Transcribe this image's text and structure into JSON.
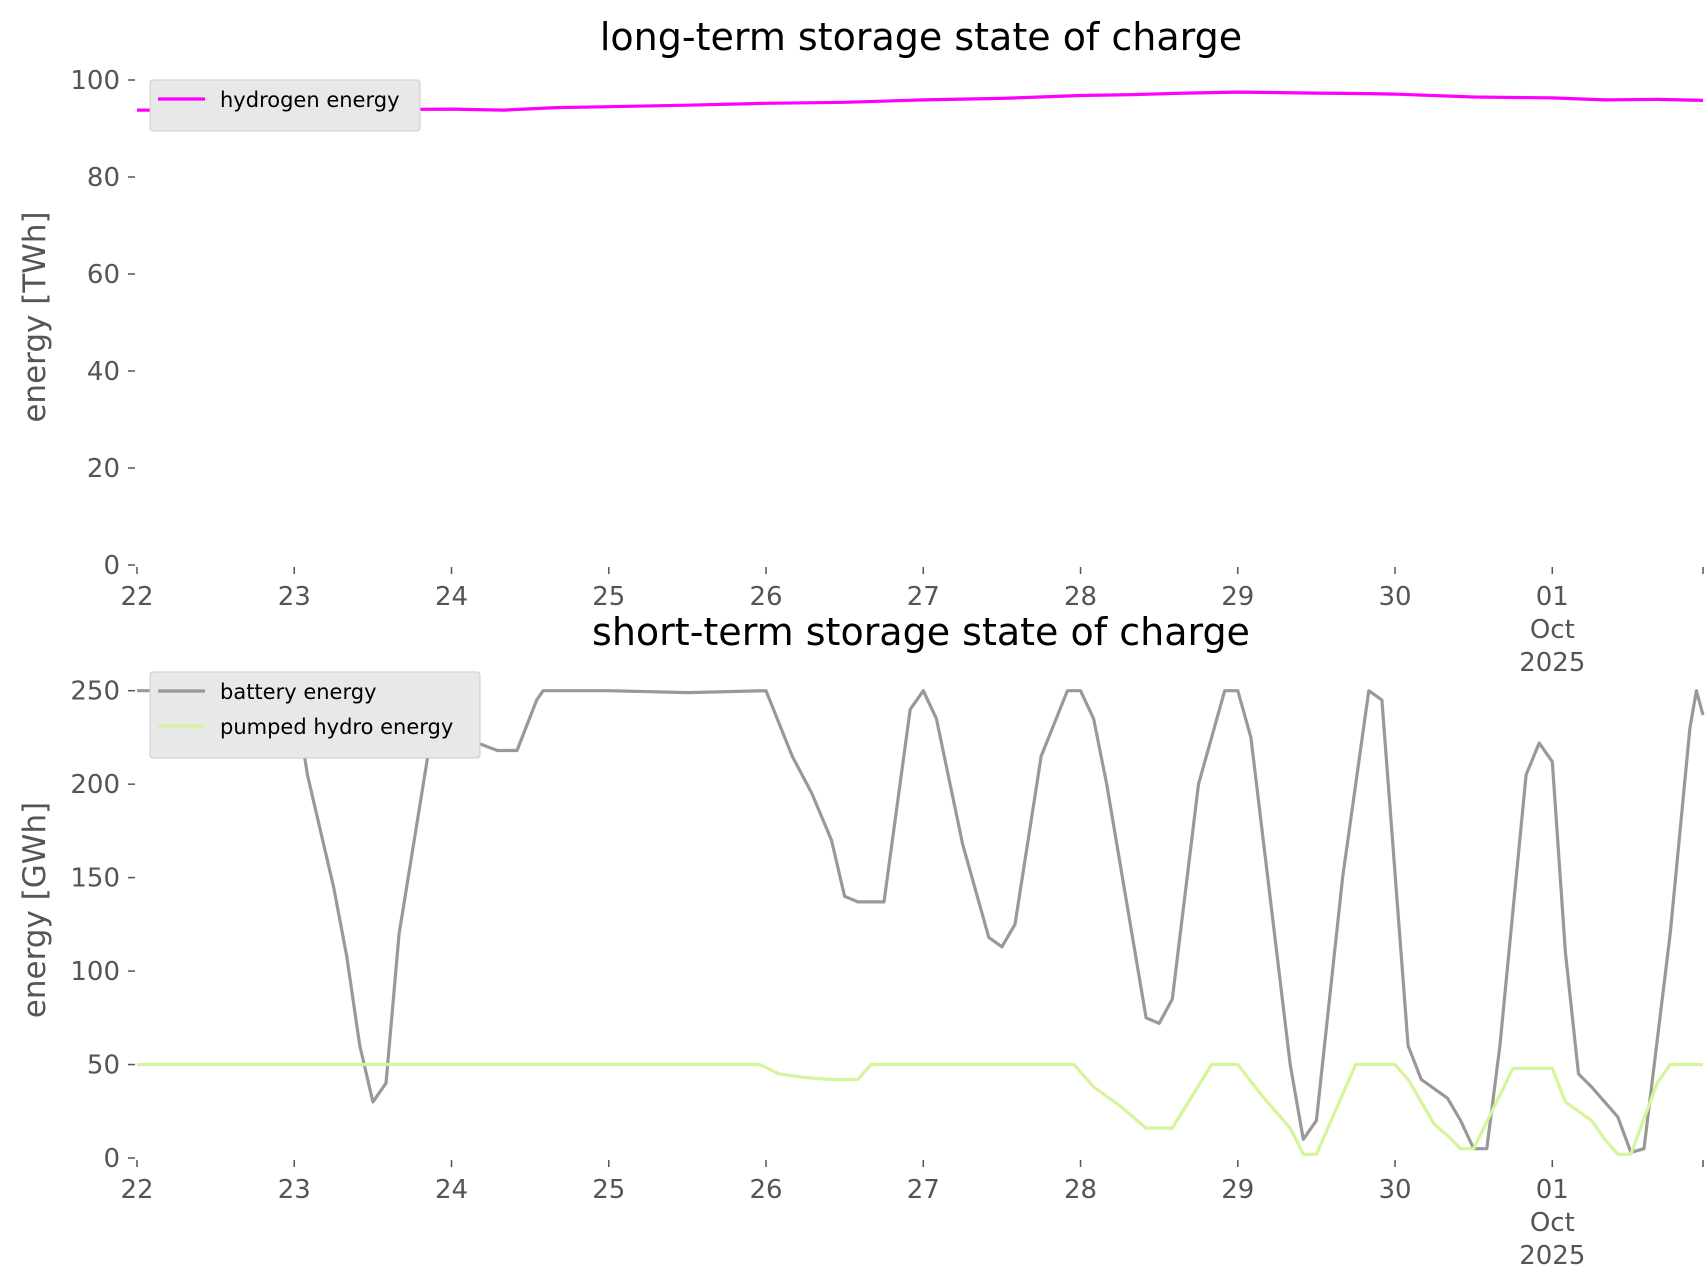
{
  "chart_data": [
    {
      "type": "line",
      "title": "long-term storage state of charge",
      "xlabel": "",
      "ylabel": "energy [TWh]",
      "ylim": [
        0,
        100
      ],
      "yticks": [
        "0",
        "20",
        "40",
        "60",
        "80",
        "100"
      ],
      "xlim": [
        "2025-09-22T00:00",
        "2025-10-01T23:00"
      ],
      "xticks": [
        [
          "22"
        ],
        [
          "23"
        ],
        [
          "24"
        ],
        [
          "25"
        ],
        [
          "26"
        ],
        [
          "27"
        ],
        [
          "28"
        ],
        [
          "29"
        ],
        [
          "30"
        ],
        [
          "01",
          "Oct",
          "2025"
        ]
      ],
      "grid": false,
      "legend_position": "top-left",
      "series": [
        {
          "name": "hydrogen energy",
          "color": "#ff00ff",
          "points": [
            [
              "2025-09-22T00:00",
              93.8
            ],
            [
              "2025-09-22T12:00",
              93.8
            ],
            [
              "2025-09-23T00:00",
              94.0
            ],
            [
              "2025-09-23T12:00",
              93.9
            ],
            [
              "2025-09-24T00:00",
              94.0
            ],
            [
              "2025-09-24T08:00",
              93.8
            ],
            [
              "2025-09-24T16:00",
              94.3
            ],
            [
              "2025-09-25T00:00",
              94.5
            ],
            [
              "2025-09-25T12:00",
              94.8
            ],
            [
              "2025-09-26T00:00",
              95.2
            ],
            [
              "2025-09-26T12:00",
              95.4
            ],
            [
              "2025-09-27T00:00",
              95.9
            ],
            [
              "2025-09-27T12:00",
              96.2
            ],
            [
              "2025-09-28T00:00",
              96.8
            ],
            [
              "2025-09-28T08:00",
              97.0
            ],
            [
              "2025-09-28T16:00",
              97.3
            ],
            [
              "2025-09-29T00:00",
              97.5
            ],
            [
              "2025-09-29T12:00",
              97.3
            ],
            [
              "2025-09-29T20:00",
              97.2
            ],
            [
              "2025-09-30T00:00",
              97.1
            ],
            [
              "2025-09-30T12:00",
              96.5
            ],
            [
              "2025-10-01T00:00",
              96.3
            ],
            [
              "2025-10-01T08:00",
              95.9
            ],
            [
              "2025-10-01T16:00",
              96.0
            ],
            [
              "2025-10-01T23:00",
              95.8
            ]
          ]
        }
      ]
    },
    {
      "type": "line",
      "title": "short-term storage state of charge",
      "xlabel": "",
      "ylabel": "energy [GWh]",
      "ylim": [
        0,
        260
      ],
      "yticks": [
        "0",
        "50",
        "100",
        "150",
        "200",
        "250"
      ],
      "xlim": [
        "2025-09-22T00:00",
        "2025-10-01T23:00"
      ],
      "xticks": [
        [
          "22"
        ],
        [
          "23"
        ],
        [
          "24"
        ],
        [
          "25"
        ],
        [
          "26"
        ],
        [
          "27"
        ],
        [
          "28"
        ],
        [
          "29"
        ],
        [
          "30"
        ],
        [
          "01",
          "Oct",
          "2025"
        ]
      ],
      "grid": false,
      "legend_position": "top-left",
      "series": [
        {
          "name": "battery energy",
          "color": "#999999",
          "points": [
            [
              "2025-09-22T00:00",
              250
            ],
            [
              "2025-09-23T00:00",
              250
            ],
            [
              "2025-09-23T02:00",
              205
            ],
            [
              "2025-09-23T06:00",
              145
            ],
            [
              "2025-09-23T08:00",
              108
            ],
            [
              "2025-09-23T10:00",
              60
            ],
            [
              "2025-09-23T12:00",
              30
            ],
            [
              "2025-09-23T14:00",
              40
            ],
            [
              "2025-09-23T16:00",
              120
            ],
            [
              "2025-09-23T22:00",
              250
            ],
            [
              "2025-09-24T00:00",
              245
            ],
            [
              "2025-09-24T02:00",
              230
            ],
            [
              "2025-09-24T04:00",
              222
            ],
            [
              "2025-09-24T07:00",
              218
            ],
            [
              "2025-09-24T10:00",
              218
            ],
            [
              "2025-09-24T13:00",
              245
            ],
            [
              "2025-09-24T14:00",
              250
            ],
            [
              "2025-09-25T00:00",
              250
            ],
            [
              "2025-09-25T12:00",
              249
            ],
            [
              "2025-09-26T00:00",
              250
            ],
            [
              "2025-09-26T04:00",
              215
            ],
            [
              "2025-09-26T07:00",
              195
            ],
            [
              "2025-09-26T10:00",
              170
            ],
            [
              "2025-09-26T12:00",
              140
            ],
            [
              "2025-09-26T14:00",
              137
            ],
            [
              "2025-09-26T18:00",
              137
            ],
            [
              "2025-09-26T22:00",
              240
            ],
            [
              "2025-09-27T00:00",
              250
            ],
            [
              "2025-09-27T02:00",
              235
            ],
            [
              "2025-09-27T06:00",
              168
            ],
            [
              "2025-09-27T10:00",
              118
            ],
            [
              "2025-09-27T12:00",
              113
            ],
            [
              "2025-09-27T14:00",
              125
            ],
            [
              "2025-09-27T18:00",
              215
            ],
            [
              "2025-09-27T22:00",
              250
            ],
            [
              "2025-09-28T00:00",
              250
            ],
            [
              "2025-09-28T02:00",
              235
            ],
            [
              "2025-09-28T04:00",
              200
            ],
            [
              "2025-09-28T10:00",
              75
            ],
            [
              "2025-09-28T12:00",
              72
            ],
            [
              "2025-09-28T14:00",
              85
            ],
            [
              "2025-09-28T18:00",
              200
            ],
            [
              "2025-09-28T22:00",
              250
            ],
            [
              "2025-09-29T00:00",
              250
            ],
            [
              "2025-09-29T02:00",
              225
            ],
            [
              "2025-09-29T08:00",
              50
            ],
            [
              "2025-09-29T10:00",
              10
            ],
            [
              "2025-09-29T12:00",
              20
            ],
            [
              "2025-09-29T16:00",
              150
            ],
            [
              "2025-09-29T20:00",
              250
            ],
            [
              "2025-09-29T22:00",
              245
            ],
            [
              "2025-09-30T02:00",
              60
            ],
            [
              "2025-09-30T04:00",
              42
            ],
            [
              "2025-09-30T08:00",
              32
            ],
            [
              "2025-09-30T10:00",
              20
            ],
            [
              "2025-09-30T12:00",
              5
            ],
            [
              "2025-09-30T14:00",
              5
            ],
            [
              "2025-09-30T16:00",
              60
            ],
            [
              "2025-09-30T20:00",
              205
            ],
            [
              "2025-09-30T22:00",
              222
            ],
            [
              "2025-10-01T00:00",
              212
            ],
            [
              "2025-10-01T02:00",
              110
            ],
            [
              "2025-10-01T04:00",
              45
            ],
            [
              "2025-10-01T06:00",
              38
            ],
            [
              "2025-10-01T08:00",
              30
            ],
            [
              "2025-10-01T10:00",
              22
            ],
            [
              "2025-10-01T12:00",
              3
            ],
            [
              "2025-10-01T14:00",
              5
            ],
            [
              "2025-10-01T18:00",
              120
            ],
            [
              "2025-10-01T21:00",
              230
            ],
            [
              "2025-10-01T22:00",
              250
            ],
            [
              "2025-10-01T23:00",
              237
            ]
          ]
        },
        {
          "name": "pumped hydro energy",
          "color": "#d4f59a",
          "points": [
            [
              "2025-09-22T00:00",
              50
            ],
            [
              "2025-09-25T23:00",
              50
            ],
            [
              "2025-09-26T02:00",
              45
            ],
            [
              "2025-09-26T06:00",
              43
            ],
            [
              "2025-09-26T10:00",
              42
            ],
            [
              "2025-09-26T14:00",
              42
            ],
            [
              "2025-09-26T16:00",
              50
            ],
            [
              "2025-09-27T23:00",
              50
            ],
            [
              "2025-09-28T02:00",
              38
            ],
            [
              "2025-09-28T06:00",
              28
            ],
            [
              "2025-09-28T08:00",
              22
            ],
            [
              "2025-09-28T10:00",
              16
            ],
            [
              "2025-09-28T14:00",
              16
            ],
            [
              "2025-09-28T20:00",
              50
            ],
            [
              "2025-09-29T00:00",
              50
            ],
            [
              "2025-09-29T04:00",
              32
            ],
            [
              "2025-09-29T08:00",
              16
            ],
            [
              "2025-09-29T10:00",
              2
            ],
            [
              "2025-09-29T12:00",
              2
            ],
            [
              "2025-09-29T18:00",
              50
            ],
            [
              "2025-09-30T00:00",
              50
            ],
            [
              "2025-09-30T02:00",
              42
            ],
            [
              "2025-09-30T06:00",
              18
            ],
            [
              "2025-09-30T08:00",
              12
            ],
            [
              "2025-09-30T10:00",
              5
            ],
            [
              "2025-09-30T12:00",
              5
            ],
            [
              "2025-09-30T18:00",
              48
            ],
            [
              "2025-10-01T00:00",
              48
            ],
            [
              "2025-10-01T02:00",
              30
            ],
            [
              "2025-10-01T06:00",
              20
            ],
            [
              "2025-10-01T08:00",
              10
            ],
            [
              "2025-10-01T10:00",
              2
            ],
            [
              "2025-10-01T12:00",
              2
            ],
            [
              "2025-10-01T16:00",
              40
            ],
            [
              "2025-10-01T18:00",
              50
            ],
            [
              "2025-10-01T23:00",
              50
            ]
          ]
        }
      ]
    }
  ]
}
